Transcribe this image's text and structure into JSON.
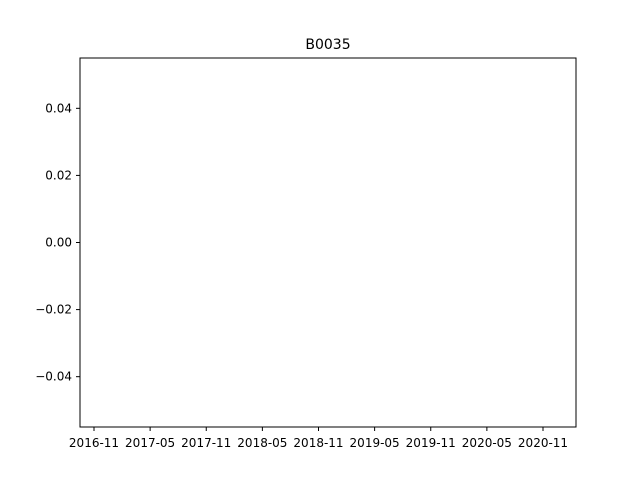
{
  "chart_data": {
    "type": "line",
    "title": "B0035",
    "xlabel": "",
    "ylabel": "",
    "x_ticks": [
      "2016-11",
      "2017-05",
      "2017-11",
      "2018-05",
      "2018-11",
      "2019-05",
      "2019-11",
      "2020-05",
      "2020-11"
    ],
    "y_ticks": [
      0.04,
      0.02,
      0.0,
      -0.02,
      -0.04
    ],
    "y_tick_labels": [
      "0.04",
      "0.02",
      "0.00",
      "−0.02",
      "−0.04"
    ],
    "ylim": [
      -0.055,
      0.055
    ],
    "grid": false,
    "legend": "none",
    "series": []
  },
  "colors": {
    "axes": "#000000",
    "background": "#ffffff"
  }
}
